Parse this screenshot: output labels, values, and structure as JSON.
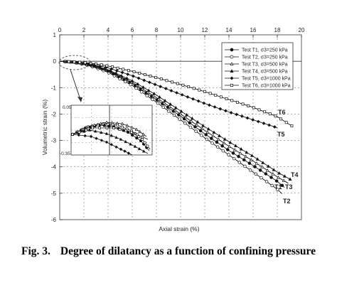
{
  "caption": {
    "label": "Fig. 3.",
    "text": "Degree of dilatancy as a function of confining pressure"
  },
  "chart_data": {
    "type": "line",
    "xlabel": "Axial strain (%)",
    "ylabel": "Volumetric strain (%)",
    "xlim": [
      0,
      20
    ],
    "ylim": [
      -6,
      1
    ],
    "x_ticks": [
      "0",
      "2",
      "4",
      "6",
      "8",
      "10",
      "12",
      "14",
      "16",
      "18",
      "20"
    ],
    "y_ticks": [
      "1",
      "0",
      "-1",
      "-2",
      "-3",
      "-4",
      "-5",
      "-6"
    ],
    "grid": true,
    "legend_position": "top-right",
    "series": [
      {
        "name": "Test T1, σ3=250 kPa",
        "label": "T1",
        "marker": "filled-circle",
        "x": [
          0,
          1,
          2,
          3,
          4,
          6,
          8,
          10,
          12,
          14,
          16,
          17,
          18,
          18.6
        ],
        "y": [
          0,
          -0.03,
          -0.1,
          -0.22,
          -0.38,
          -0.85,
          -1.45,
          -2.08,
          -2.75,
          -3.38,
          -3.95,
          -4.25,
          -4.55,
          -4.78
        ]
      },
      {
        "name": "Test T2, σ3=250 kPa",
        "label": "T2",
        "marker": "open-circle",
        "x": [
          0,
          1,
          2,
          3,
          4,
          6,
          8,
          10,
          12,
          14,
          16,
          17,
          18,
          18.4
        ],
        "y": [
          0,
          -0.03,
          -0.12,
          -0.25,
          -0.42,
          -0.92,
          -1.55,
          -2.22,
          -2.9,
          -3.55,
          -4.2,
          -4.52,
          -4.85,
          -5.02
        ]
      },
      {
        "name": "Test T3, σ3=500 kPa",
        "label": "T3",
        "marker": "open-triangle",
        "x": [
          0,
          1,
          2,
          3,
          4,
          6,
          8,
          10,
          12,
          14,
          16,
          17,
          18,
          18.9
        ],
        "y": [
          0,
          -0.03,
          -0.1,
          -0.2,
          -0.35,
          -0.8,
          -1.38,
          -2.0,
          -2.62,
          -3.22,
          -3.78,
          -4.08,
          -4.38,
          -4.62
        ]
      },
      {
        "name": "Test T4, σ3=500 kPa",
        "label": "T4",
        "marker": "filled-triangle",
        "x": [
          0,
          1,
          2,
          3,
          4,
          6,
          8,
          10,
          12,
          14,
          16,
          17,
          18,
          19.1
        ],
        "y": [
          0,
          -0.03,
          -0.09,
          -0.18,
          -0.32,
          -0.74,
          -1.28,
          -1.88,
          -2.48,
          -3.05,
          -3.6,
          -3.9,
          -4.2,
          -4.48
        ]
      },
      {
        "name": "Test T5, σ3=1000 kPa",
        "label": "T5",
        "marker": "filled-diamond",
        "x": [
          0,
          1,
          2,
          3,
          4,
          6,
          8,
          10,
          12,
          14,
          16,
          18
        ],
        "y": [
          0,
          -0.02,
          -0.07,
          -0.14,
          -0.25,
          -0.55,
          -0.9,
          -1.25,
          -1.6,
          -1.92,
          -2.22,
          -2.52
        ]
      },
      {
        "name": "Test T6, σ3=1000 kPa",
        "label": "T6",
        "marker": "open-square",
        "x": [
          0,
          1,
          2,
          3,
          4,
          6,
          8,
          10,
          12,
          14,
          16,
          18,
          19.2
        ],
        "y": [
          0,
          -0.02,
          -0.05,
          -0.1,
          -0.18,
          -0.38,
          -0.62,
          -0.88,
          -1.15,
          -1.45,
          -1.75,
          -2.1,
          -2.45
        ]
      }
    ],
    "inset": {
      "ylim": [
        -0.35,
        0.05
      ],
      "y_ticks": [
        "0.05",
        "-0.35"
      ],
      "note": "magnified view of the initial (dilatant) portion near the origin"
    }
  }
}
